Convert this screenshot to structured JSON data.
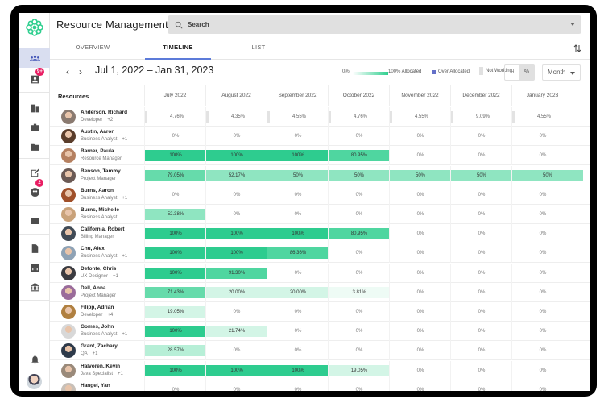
{
  "app": {
    "title": "Resource Management"
  },
  "search": {
    "placeholder": "Search"
  },
  "tabs": [
    {
      "label": "OVERVIEW",
      "active": false
    },
    {
      "label": "TIMELINE",
      "active": true
    },
    {
      "label": "LIST",
      "active": false
    }
  ],
  "toolbar": {
    "prev_icon": "‹",
    "next_icon": "›",
    "date_range": "Jul 1, 2022 – Jan 31, 2023",
    "legend": {
      "min_label": "0%",
      "max_label": "100% Allocated",
      "over_label": "Over Allocated",
      "not_working_label": "Not Working",
      "gradient_color": "#2fcf8f",
      "over_color": "#6470c8"
    },
    "unit_toggle": {
      "hours": "H",
      "percent": "%",
      "selected": "%"
    },
    "period_select": "Month"
  },
  "sidebar": {
    "badges": {
      "requests": "9+",
      "approvals": "2"
    }
  },
  "grid": {
    "resources_header": "Resources",
    "months": [
      "July 2022",
      "August 2022",
      "September 2022",
      "October 2022",
      "November 2022",
      "December 2022",
      "January 2023"
    ],
    "rows": [
      {
        "name": "Anderson, Richard",
        "role": "Developer",
        "extra": "+2",
        "values": [
          "4.76%",
          "4.35%",
          "4.55%",
          "4.76%",
          "4.55%",
          "9.09%",
          "4.55%"
        ]
      },
      {
        "name": "Austin, Aaron",
        "role": "Business Analyst",
        "extra": "+1",
        "values": [
          "0%",
          "0%",
          "0%",
          "0%",
          "0%",
          "0%",
          "0%"
        ]
      },
      {
        "name": "Barner, Paula",
        "role": "Resource Manager",
        "extra": "",
        "values": [
          "100%",
          "100%",
          "100%",
          "80.95%",
          "0%",
          "0%",
          "0%"
        ]
      },
      {
        "name": "Benson, Tammy",
        "role": "Project Manager",
        "extra": "",
        "values": [
          "79.05%",
          "52.17%",
          "50%",
          "50%",
          "50%",
          "50%",
          "50%"
        ]
      },
      {
        "name": "Burns, Aaron",
        "role": "Business Analyst",
        "extra": "+1",
        "values": [
          "0%",
          "0%",
          "0%",
          "0%",
          "0%",
          "0%",
          "0%"
        ]
      },
      {
        "name": "Burns, Michelle",
        "role": "Business Analyst",
        "extra": "",
        "values": [
          "52.38%",
          "0%",
          "0%",
          "0%",
          "0%",
          "0%",
          "0%"
        ]
      },
      {
        "name": "California, Robert",
        "role": "Billing Manager",
        "extra": "",
        "values": [
          "100%",
          "100%",
          "100%",
          "80.95%",
          "0%",
          "0%",
          "0%"
        ]
      },
      {
        "name": "Chu, Alex",
        "role": "Business Analyst",
        "extra": "+1",
        "values": [
          "100%",
          "100%",
          "86.36%",
          "0%",
          "0%",
          "0%",
          "0%"
        ]
      },
      {
        "name": "Defonte, Chris",
        "role": "UX Designer",
        "extra": "+1",
        "values": [
          "100%",
          "91.30%",
          "0%",
          "0%",
          "0%",
          "0%",
          "0%"
        ]
      },
      {
        "name": "Dell, Anna",
        "role": "Project Manager",
        "extra": "",
        "values": [
          "71.43%",
          "20.00%",
          "20.00%",
          "3.81%",
          "0%",
          "0%",
          "0%"
        ]
      },
      {
        "name": "Filipp, Adrian",
        "role": "Developer",
        "extra": "+4",
        "values": [
          "19.05%",
          "0%",
          "0%",
          "0%",
          "0%",
          "0%",
          "0%"
        ]
      },
      {
        "name": "Gomes, John",
        "role": "Business Analyst",
        "extra": "+1",
        "values": [
          "100%",
          "21.74%",
          "0%",
          "0%",
          "0%",
          "0%",
          "0%"
        ]
      },
      {
        "name": "Grant, Zachary",
        "role": "QA",
        "extra": "+1",
        "values": [
          "28.57%",
          "0%",
          "0%",
          "0%",
          "0%",
          "0%",
          "0%"
        ]
      },
      {
        "name": "Halvoren, Kevin",
        "role": "Java Specialist",
        "extra": "+1",
        "values": [
          "100%",
          "100%",
          "100%",
          "19.05%",
          "0%",
          "0%",
          "0%"
        ]
      },
      {
        "name": "Hangel, Yan",
        "role": "",
        "extra": "",
        "values": [
          "0%",
          "0%",
          "0%",
          "0%",
          "0%",
          "0%",
          "0%"
        ]
      }
    ]
  }
}
